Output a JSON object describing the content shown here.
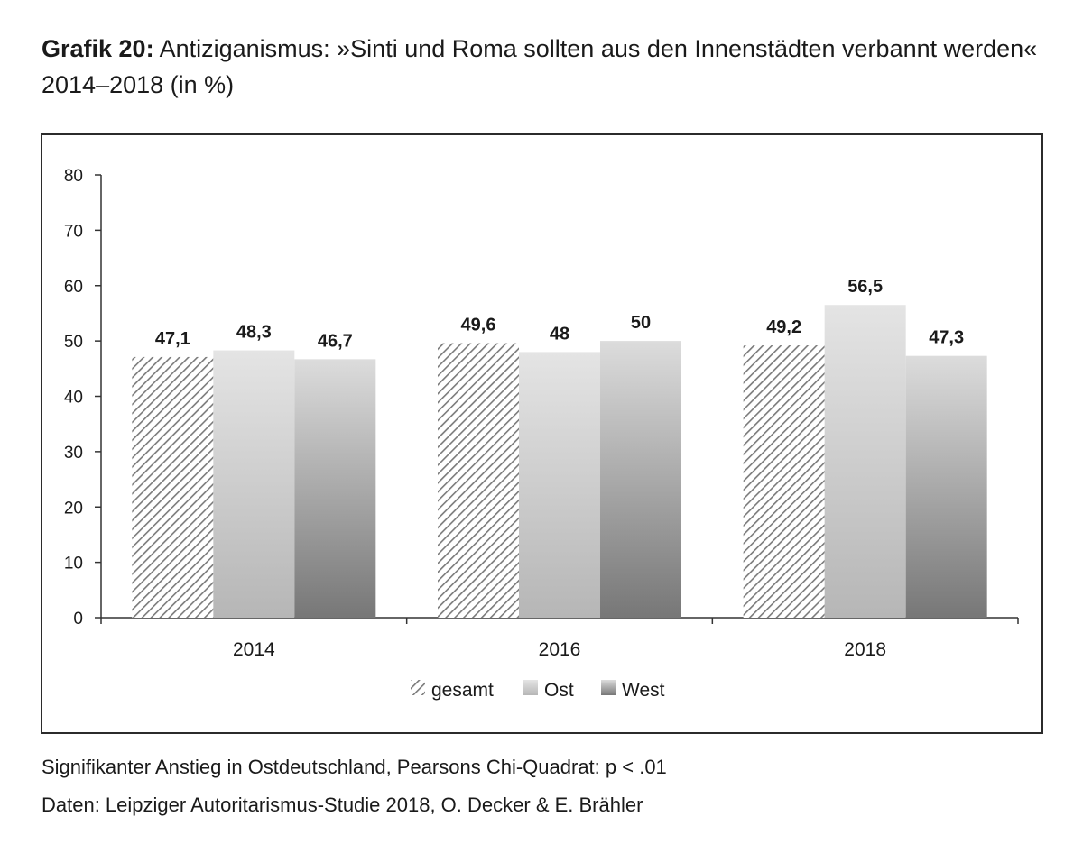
{
  "figure": {
    "title_prefix": "Grafik 20:",
    "title_text": "Antiziganismus: »Sinti und Roma sollten aus den Innenstädten verbannt werden« 2014–2018 (in %)",
    "note_significance": "Signifikanter Anstieg in Ostdeutschland, Pearsons Chi-Quadrat: p < .01",
    "note_source": "Daten: Leipziger Autoritarismus-Studie 2018, O. Decker & E. Brähler"
  },
  "chart_data": {
    "type": "bar",
    "categories": [
      "2014",
      "2016",
      "2018"
    ],
    "series": [
      {
        "name": "gesamt",
        "values": [
          47.1,
          49.6,
          49.2
        ],
        "labels": [
          "47,1",
          "49,6",
          "49,2"
        ],
        "style": "hatched"
      },
      {
        "name": "Ost",
        "values": [
          48.3,
          48,
          56.5
        ],
        "labels": [
          "48,3",
          "48",
          "56,5"
        ],
        "style": "light-gradient"
      },
      {
        "name": "West",
        "values": [
          46.7,
          50,
          47.3
        ],
        "labels": [
          "46,7",
          "50",
          "47,3"
        ],
        "style": "dark-gradient"
      }
    ],
    "ylim": [
      0,
      80
    ],
    "yticks": [
      0,
      10,
      20,
      30,
      40,
      50,
      60,
      70,
      80
    ],
    "xlabel": "",
    "ylabel": "",
    "grid": false,
    "legend_position": "bottom"
  }
}
